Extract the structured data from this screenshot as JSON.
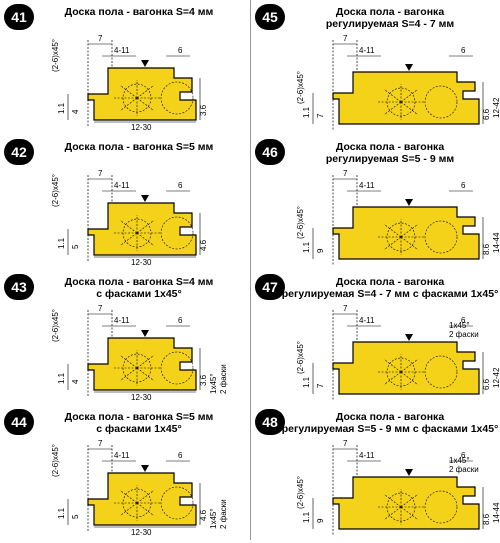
{
  "profiles": [
    {
      "number": "41",
      "title_lines": [
        "Доска пола - вагонка S=4 мм"
      ],
      "labels": [
        "(2-6)x45°",
        "7",
        "4-11",
        "6",
        "1.1",
        "4",
        "3.6",
        "12-30"
      ]
    },
    {
      "number": "45",
      "title_lines": [
        "Доска пола - вагонка",
        "регулируемая S=4 - 7 мм"
      ],
      "labels": [
        "(2-6)x45°",
        "7",
        "4-11",
        "6",
        "1.1",
        "7",
        "6.6",
        "12-42"
      ]
    },
    {
      "number": "42",
      "title_lines": [
        "Доска пола - вагонка S=5 мм"
      ],
      "labels": [
        "(2-6)x45°",
        "7",
        "4-11",
        "6",
        "1.1",
        "5",
        "4.6",
        "12-30"
      ]
    },
    {
      "number": "46",
      "title_lines": [
        "Доска пола - вагонка",
        "регулируемая S=5 - 9 мм"
      ],
      "labels": [
        "(2-6)x45°",
        "7",
        "4-11",
        "6",
        "1.1",
        "9",
        "8.6",
        "14-44"
      ]
    },
    {
      "number": "43",
      "title_lines": [
        "Доска пола - вагонка S=4 мм",
        "с фасками 1x45°"
      ],
      "labels": [
        "(2-6)x45°",
        "7",
        "4-11",
        "6",
        "1.1",
        "4",
        "3.6",
        "12-30",
        "1x45°",
        "2 фаски"
      ]
    },
    {
      "number": "47",
      "title_lines": [
        "Доска пола - вагонка",
        "регулируемая S=4 - 7 мм с фасками 1x45°"
      ],
      "labels": [
        "(2-6)x45°",
        "7",
        "4-11",
        "6",
        "1.1",
        "7",
        "6.6",
        "12-42",
        "1x45°",
        "2 фаски"
      ]
    },
    {
      "number": "44",
      "title_lines": [
        "Доска пола - вагонка S=5 мм",
        "с фасками 1x45°"
      ],
      "labels": [
        "(2-6)x45°",
        "7",
        "4-11",
        "6",
        "1.1",
        "5",
        "4.6",
        "12-30",
        "1x45°",
        "2 фаски"
      ]
    },
    {
      "number": "48",
      "title_lines": [
        "Доска пола - вагонка",
        "регулируемая S=5 - 9 мм с фасками 1x45°"
      ],
      "labels": [
        "(2-6)x45°",
        "7",
        "4-11",
        "6",
        "1.1",
        "9",
        "8.6",
        "14-44",
        "1x45°",
        "2 фаски"
      ]
    }
  ]
}
